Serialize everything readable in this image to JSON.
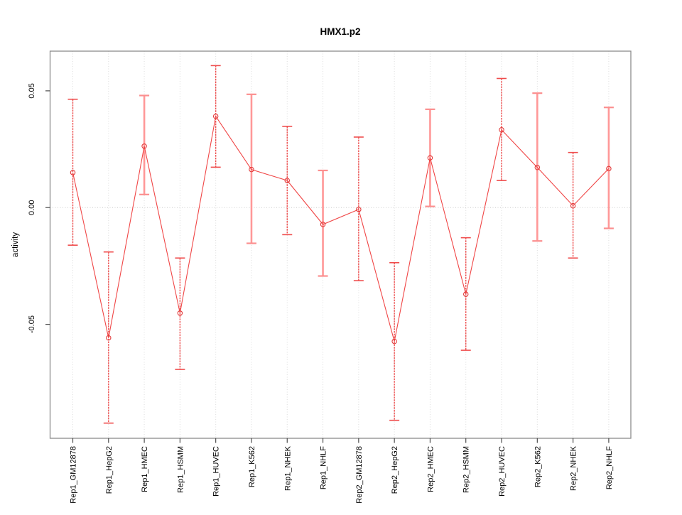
{
  "chart_data": {
    "type": "line",
    "title": "HMX1.p2",
    "xlabel": "",
    "ylabel": "activity",
    "categories": [
      "Rep1_GM12878",
      "Rep1_HepG2",
      "Rep1_HMEC",
      "Rep1_HSMM",
      "Rep1_HUVEC",
      "Rep1_K562",
      "Rep1_NHEK",
      "Rep1_NHLF",
      "Rep2_GM12878",
      "Rep2_HepG2",
      "Rep2_HMEC",
      "Rep2_HSMM",
      "Rep2_HUVEC",
      "Rep2_K562",
      "Rep2_NHEK",
      "Rep2_NHLF"
    ],
    "series": [
      {
        "name": "activity",
        "values": [
          0.015,
          -0.0558,
          0.0263,
          -0.0452,
          0.0391,
          0.0163,
          0.0116,
          -0.0072,
          -0.0008,
          -0.0573,
          0.0213,
          -0.0371,
          0.0333,
          0.0172,
          0.0008,
          0.0167
        ],
        "err_high": [
          0.0464,
          -0.019,
          0.048,
          -0.0216,
          0.0608,
          0.0485,
          0.0348,
          0.0159,
          0.0302,
          -0.0236,
          0.0421,
          -0.0129,
          0.0553,
          0.049,
          0.0236,
          0.0429
        ],
        "err_low": [
          -0.0161,
          -0.0923,
          0.0056,
          -0.0693,
          0.0173,
          -0.0153,
          -0.0116,
          -0.0293,
          -0.0313,
          -0.0911,
          0.0005,
          -0.0611,
          0.0116,
          -0.0143,
          -0.0216,
          -0.0089
        ],
        "bar_heavy": [
          false,
          false,
          true,
          false,
          false,
          true,
          false,
          true,
          false,
          false,
          true,
          false,
          false,
          true,
          false,
          true
        ]
      }
    ],
    "yticks": [
      {
        "value": -0.05,
        "label": "-0.05"
      },
      {
        "value": 0.0,
        "label": "0.00"
      },
      {
        "value": 0.05,
        "label": "0.05"
      }
    ],
    "ylim": [
      -0.0988,
      0.067
    ],
    "grid": "dotted vertical gridline at each category; dotted horizontal line at y=0; legend none",
    "colors": {
      "line": "#f04646",
      "point_stroke": "#e23c3c",
      "bar_thin": "#ed5151",
      "bar_heavy": "#ff9898",
      "cap_thin": "#ef4c4c",
      "cap_heavy": "#fb8f8f",
      "gridline": "#dedede",
      "zero_line": "#cbcbcb",
      "box_border": "#8c8c8c",
      "tick": "#4d4d4d",
      "text": "#000000"
    }
  }
}
